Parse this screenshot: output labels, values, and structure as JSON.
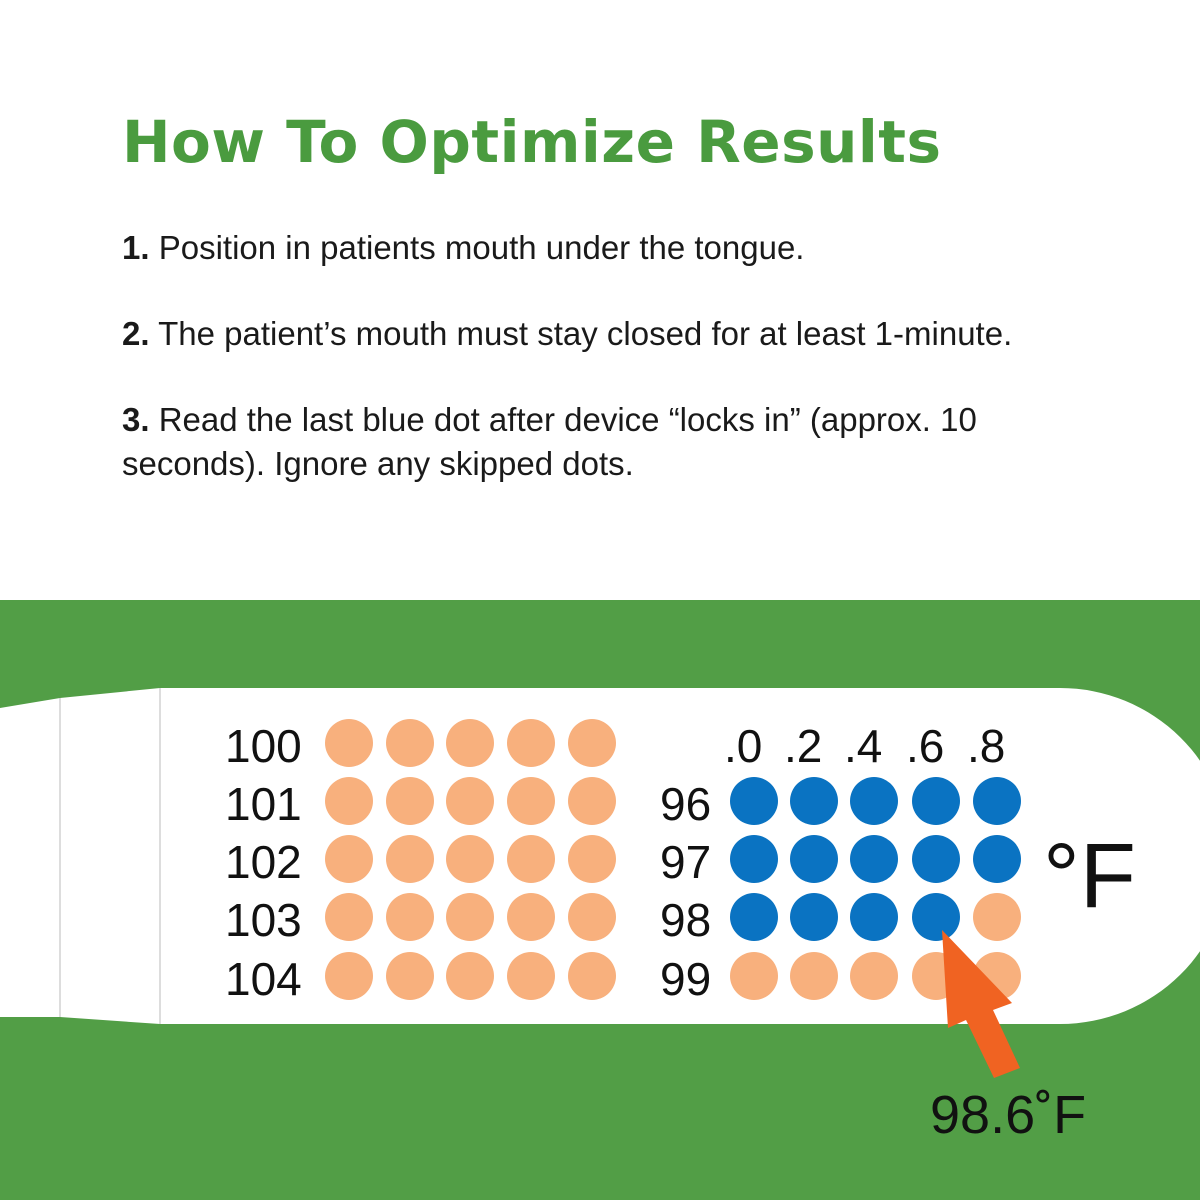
{
  "title": "How To Optimize Results",
  "steps": [
    {
      "num": "1.",
      "text": "Position in patients mouth under the tongue."
    },
    {
      "num": "2.",
      "text": "The patient’s mouth must stay closed for at least 1-minute."
    },
    {
      "num": "3.",
      "text": "Read the last blue dot after device “locks in” (approx. 10 seconds). Ignore any skipped dots."
    }
  ],
  "thermometer": {
    "left_rows": [
      "100",
      "101",
      "102",
      "103",
      "104"
    ],
    "right_cols": [
      ".0",
      ".2",
      ".4",
      ".6",
      ".8"
    ],
    "right_rows": [
      "96",
      "97",
      "98",
      "99"
    ],
    "unit": "°F",
    "reading": "98.6˚F",
    "colors": {
      "blue": "#0a73c2",
      "orange": "#f8b07d",
      "arrow": "#f06322",
      "green": "#529e46",
      "title": "#4a9b3f"
    }
  }
}
